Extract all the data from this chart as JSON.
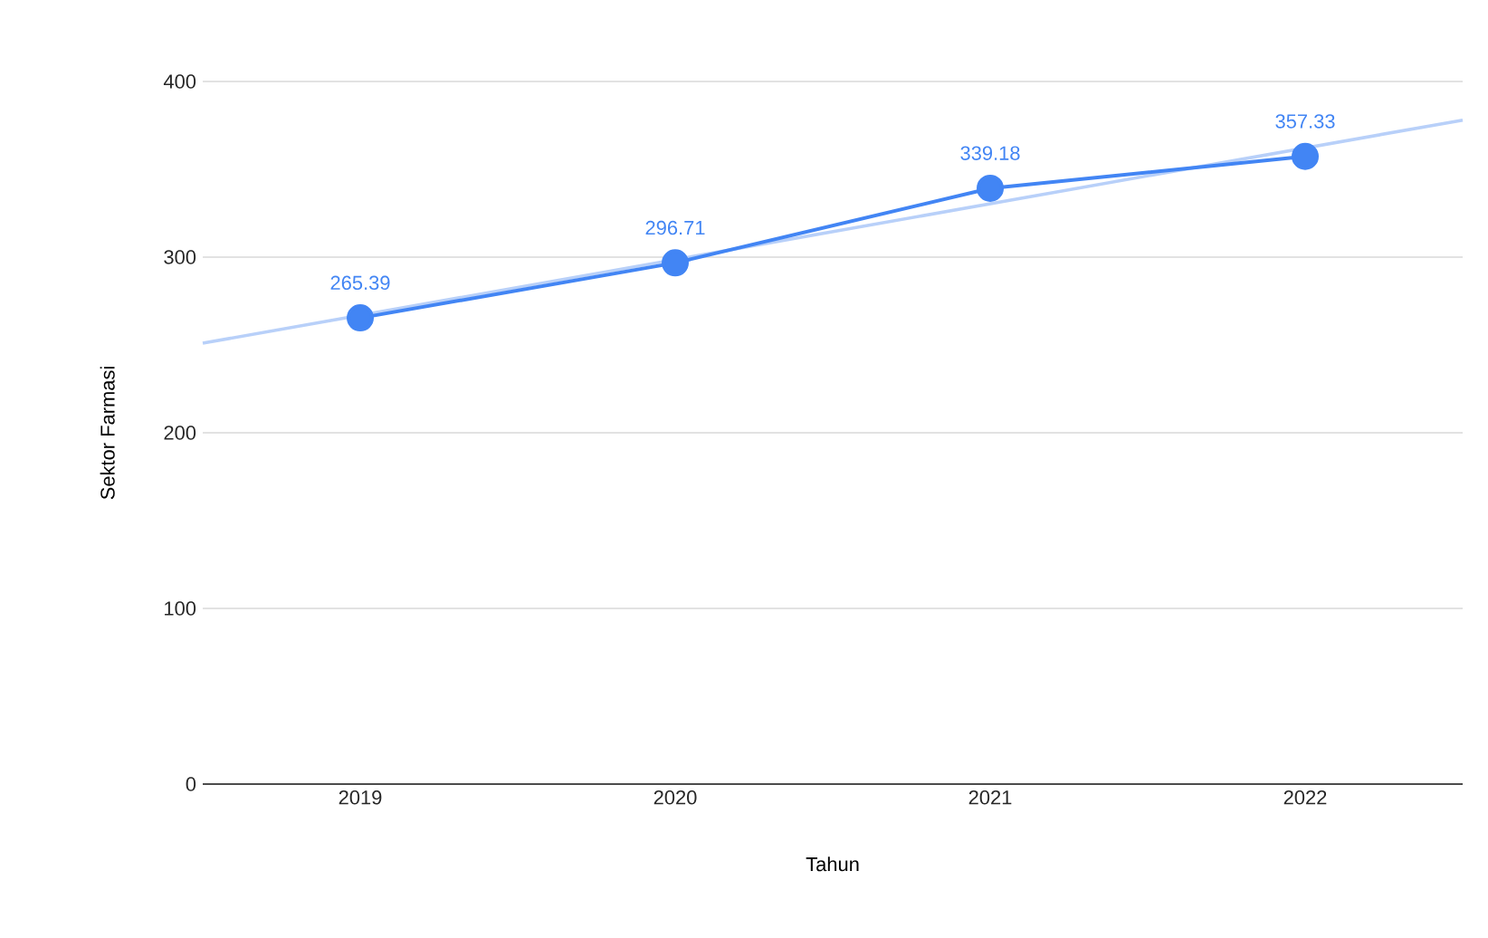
{
  "chart_data": {
    "type": "line",
    "xlabel": "Tahun",
    "ylabel": "Sektor Farmasi",
    "x": [
      2019,
      2020,
      2021,
      2022
    ],
    "series": [
      {
        "color": "#4285f4",
        "values": [
          265.39,
          296.71,
          339.18,
          357.33
        ],
        "value_labels": [
          "265.39",
          "296.71",
          "339.18",
          "357.33"
        ],
        "marker": "circle"
      },
      {
        "type": "line",
        "color": "#b8d0f9",
        "x": [
          2018.5,
          2022.5
        ],
        "values": [
          251,
          378
        ],
        "marker": "none"
      }
    ],
    "xlim": [
      2018.5,
      2022.5
    ],
    "xticks": [
      2019,
      2020,
      2021,
      2022
    ],
    "ylim": [
      0,
      400
    ],
    "yticks": [
      0,
      100,
      200,
      300,
      400
    ],
    "grid": "y"
  }
}
